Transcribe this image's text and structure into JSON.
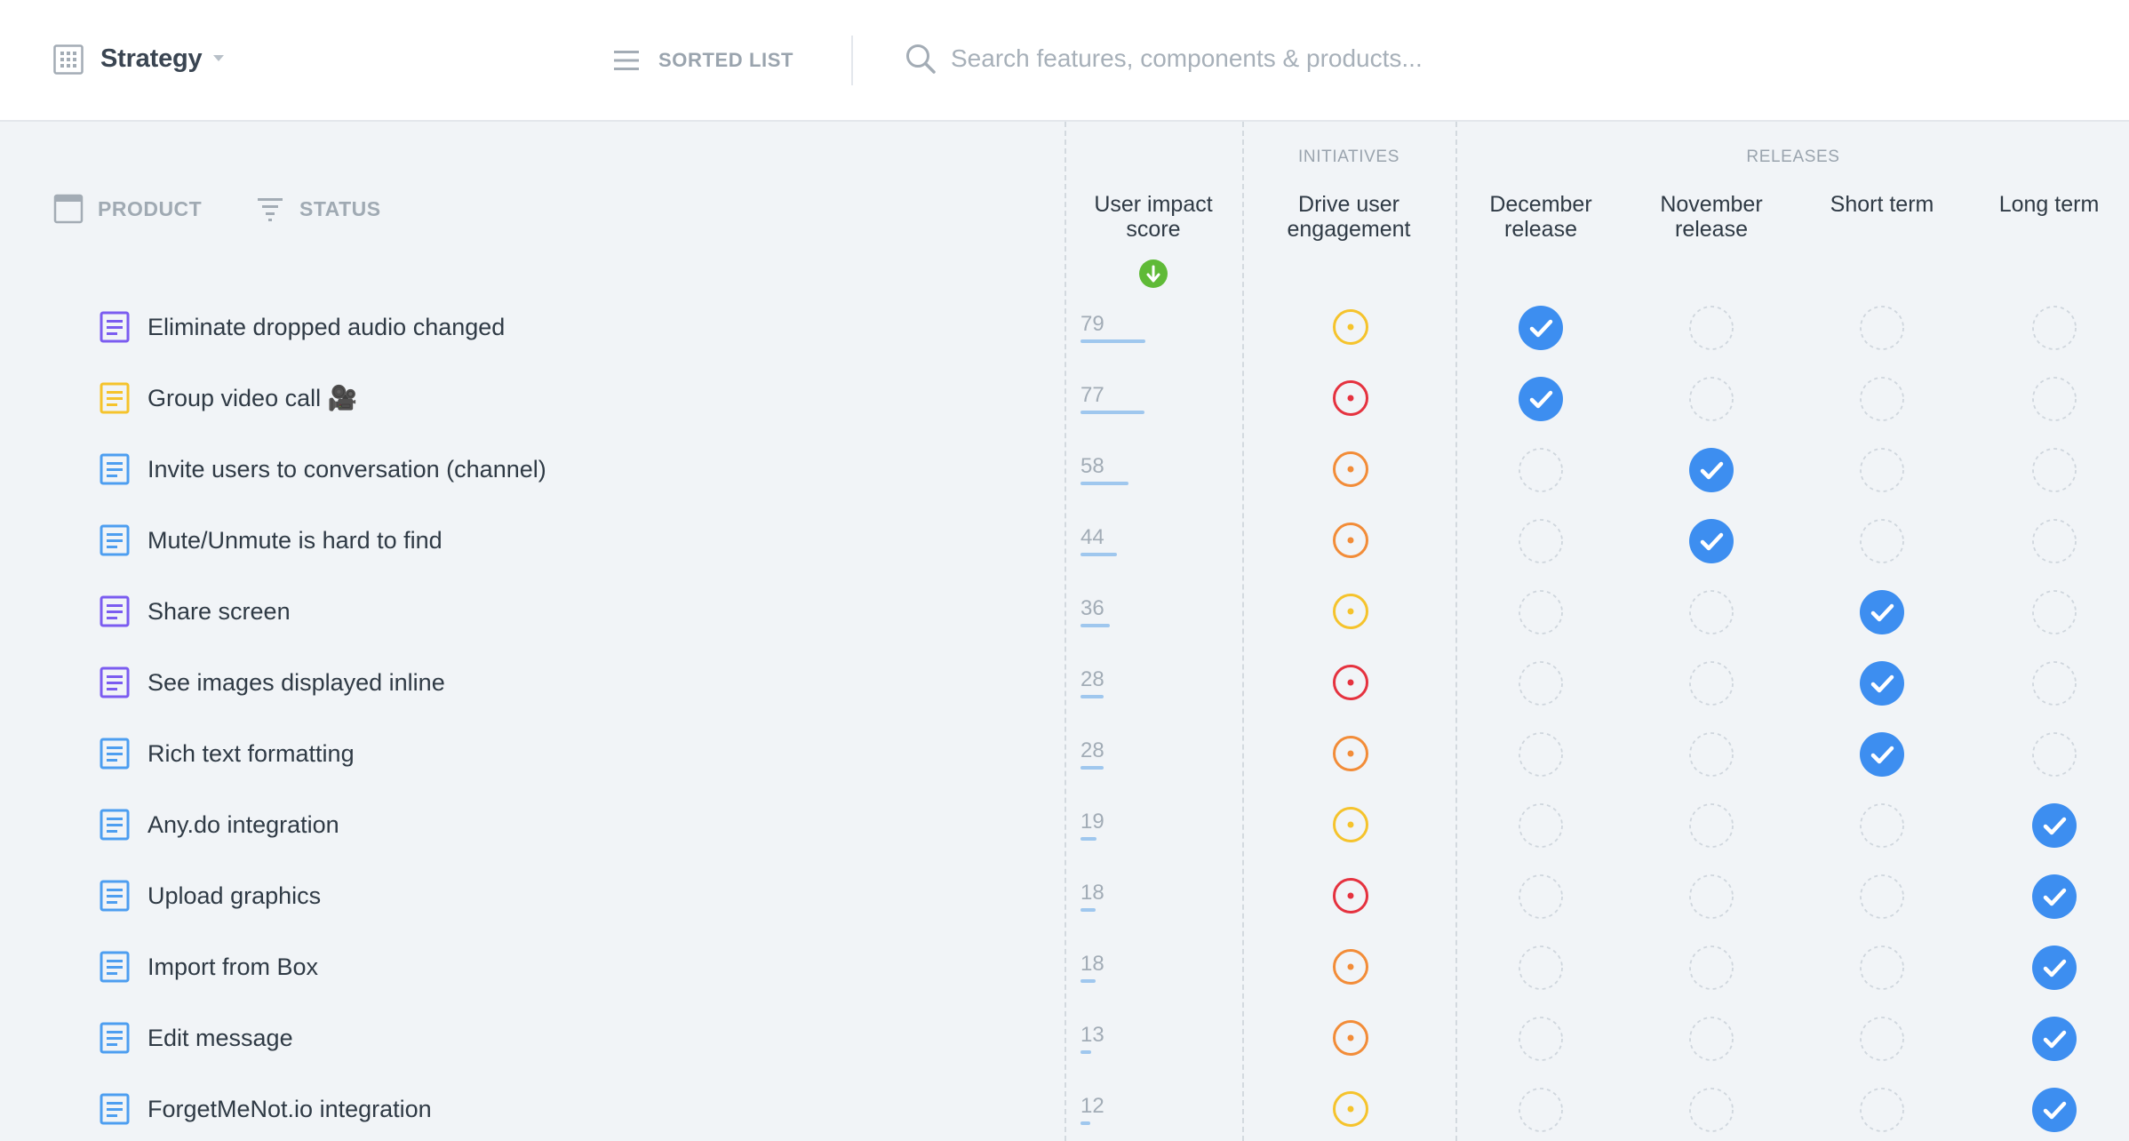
{
  "header": {
    "workspace_title": "Strategy",
    "view_label": "SORTED LIST",
    "search_placeholder": "Search features, components & products..."
  },
  "columns": {
    "product_label": "PRODUCT",
    "status_label": "STATUS",
    "score_header": "User impact score",
    "initiatives_group": "INITIATIVES",
    "initiative_header": "Drive user engagement",
    "releases_group": "RELEASES",
    "releases": [
      "December release",
      "November release",
      "Short term",
      "Long term"
    ]
  },
  "colors": {
    "purple": "#7b5cf0",
    "yellow": "#f5c32c",
    "blue": "#4d9ef0",
    "red": "#e5323f",
    "orange": "#f28c38",
    "check": "#3d8ef0",
    "sort_badge": "#5fba37"
  },
  "features": [
    {
      "name": "Eliminate dropped audio changed",
      "icon_color": "purple",
      "score": "79",
      "initiative": "yellow",
      "release": 0
    },
    {
      "name": "Group video call 🎥",
      "icon_color": "yellow",
      "score": "77",
      "initiative": "red",
      "release": 0
    },
    {
      "name": "Invite users to conversation (channel)",
      "icon_color": "blue",
      "score": "58",
      "initiative": "orange",
      "release": 1
    },
    {
      "name": "Mute/Unmute is hard to find",
      "icon_color": "blue",
      "score": "44",
      "initiative": "orange",
      "release": 1
    },
    {
      "name": "Share screen",
      "icon_color": "purple",
      "score": "36",
      "initiative": "yellow",
      "release": 2
    },
    {
      "name": "See images displayed inline",
      "icon_color": "purple",
      "score": "28",
      "initiative": "red",
      "release": 2
    },
    {
      "name": "Rich text formatting",
      "icon_color": "blue",
      "score": "28",
      "initiative": "orange",
      "release": 2
    },
    {
      "name": "Any.do integration",
      "icon_color": "blue",
      "score": "19",
      "initiative": "yellow",
      "release": 3
    },
    {
      "name": "Upload graphics",
      "icon_color": "blue",
      "score": "18",
      "initiative": "red",
      "release": 3
    },
    {
      "name": "Import from Box",
      "icon_color": "blue",
      "score": "18",
      "initiative": "orange",
      "release": 3
    },
    {
      "name": "Edit message",
      "icon_color": "blue",
      "score": "13",
      "initiative": "orange",
      "release": 3
    },
    {
      "name": "ForgetMeNot.io integration",
      "icon_color": "blue",
      "score": "12",
      "initiative": "yellow",
      "release": 3
    }
  ]
}
